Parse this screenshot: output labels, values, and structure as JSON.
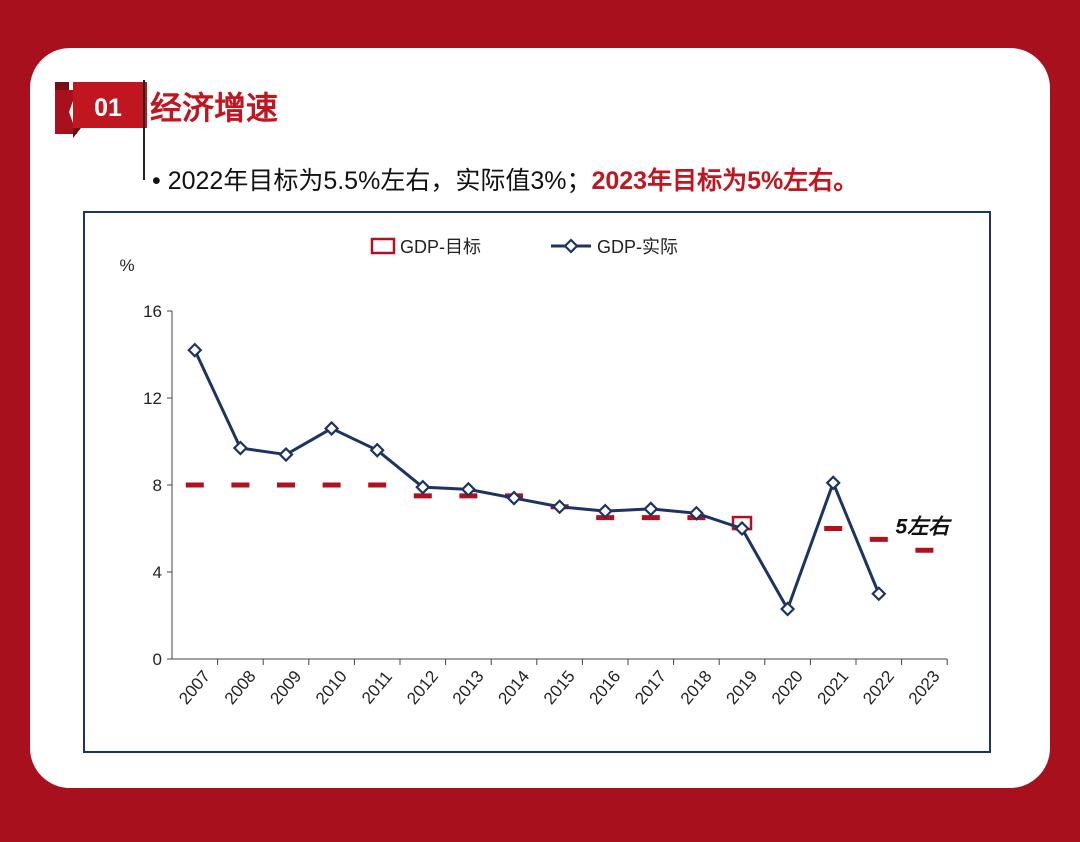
{
  "section": {
    "number": "01",
    "title": "经济增速"
  },
  "bullet": {
    "marker": "•",
    "text_normal": "2022年目标为5.5%左右，实际值3%；",
    "text_highlight": "2023年目标为5%左右。"
  },
  "colors": {
    "background": "#a8101e",
    "accent": "#c0161f",
    "actual_line": "#1c3462",
    "target_marker": "#b01020"
  },
  "chart_data": {
    "type": "line",
    "title": "",
    "xlabel": "",
    "ylabel": "%",
    "ylim": [
      0,
      16
    ],
    "yticks": [
      0,
      4,
      8,
      12,
      16
    ],
    "grid": false,
    "legend_position": "top-center",
    "categories": [
      "2007",
      "2008",
      "2009",
      "2010",
      "2011",
      "2012",
      "2013",
      "2014",
      "2015",
      "2016",
      "2017",
      "2018",
      "2019",
      "2020",
      "2021",
      "2022",
      "2023"
    ],
    "series": [
      {
        "name": "GDP-目标",
        "style": "dash-marker",
        "values": [
          8,
          8,
          8,
          8,
          8,
          7.5,
          7.5,
          7.5,
          7,
          6.5,
          6.5,
          6.5,
          6.25,
          null,
          6,
          5.5,
          5
        ]
      },
      {
        "name": "GDP-实际",
        "style": "line-diamond",
        "values": [
          14.2,
          9.7,
          9.4,
          10.6,
          9.6,
          7.9,
          7.8,
          7.4,
          7.0,
          6.8,
          6.9,
          6.7,
          6.0,
          2.3,
          8.1,
          3.0,
          null
        ]
      }
    ],
    "annotations": [
      {
        "text": "5左右",
        "category": "2023",
        "value": 5
      }
    ]
  }
}
